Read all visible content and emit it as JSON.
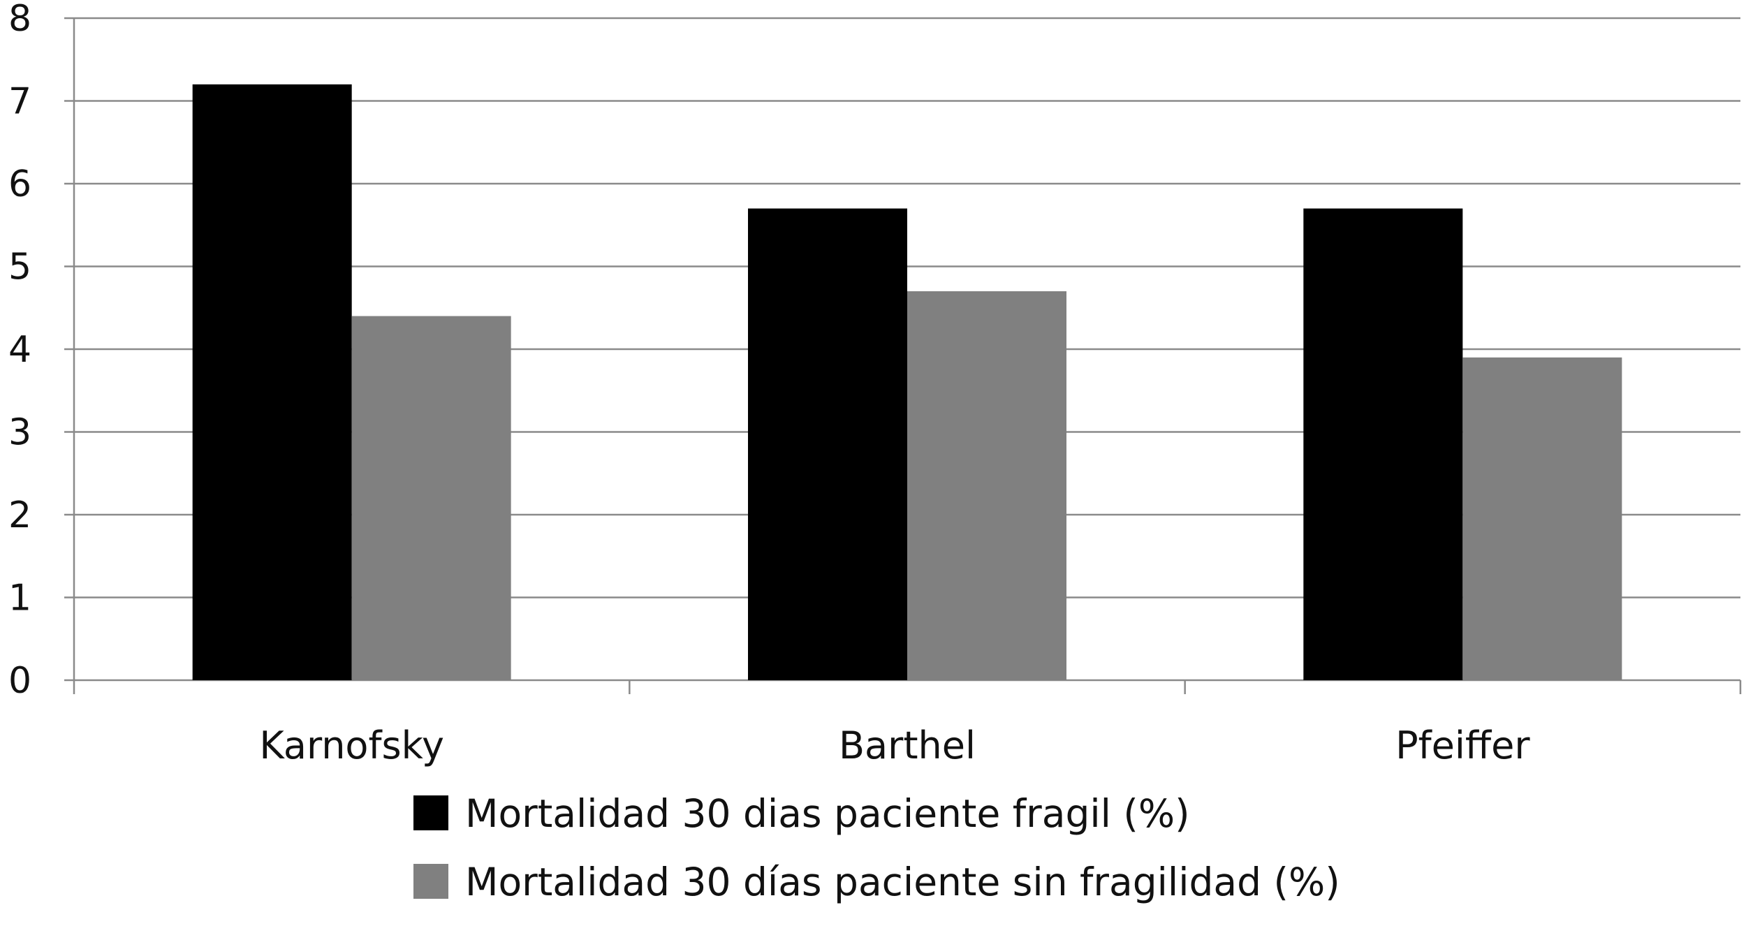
{
  "chart_data": {
    "type": "bar",
    "title": "",
    "xlabel": "",
    "ylabel": "",
    "categories": [
      "Karnofsky",
      "Barthel",
      "Pfeiffer"
    ],
    "series": [
      {
        "name": "Mortalidad 30 dias paciente fragil (%)",
        "values": [
          7.2,
          5.7,
          5.7
        ],
        "color": "#000000"
      },
      {
        "name": "Mortalidad 30 días paciente sin fragilidad (%)",
        "values": [
          4.4,
          4.7,
          3.9
        ],
        "color": "#808080"
      }
    ],
    "ylim": [
      0,
      8
    ],
    "yticks": [
      "0",
      "1",
      "2",
      "3",
      "4",
      "5",
      "6",
      "7",
      "8"
    ],
    "grid": true,
    "legend_position": "bottom"
  }
}
